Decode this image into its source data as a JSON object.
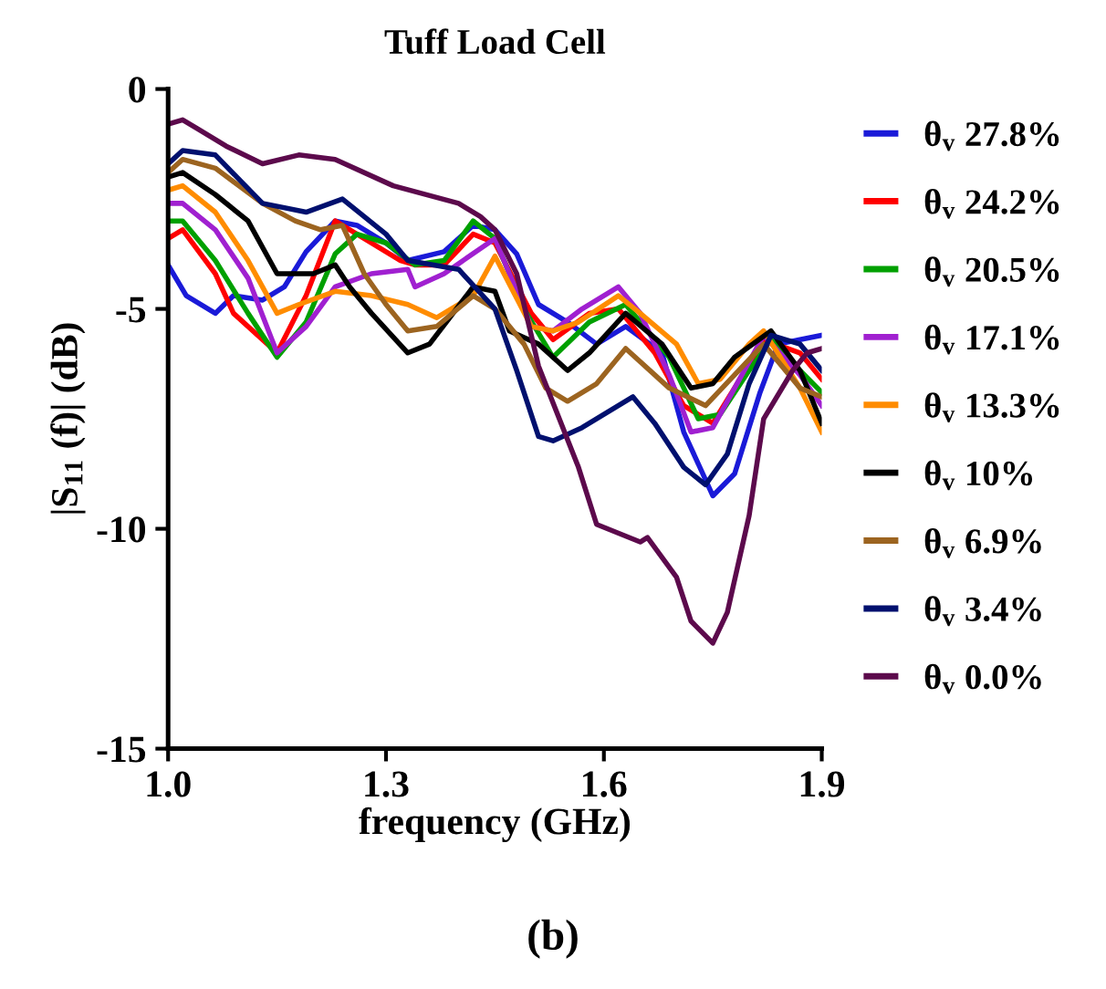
{
  "chart_data": {
    "type": "line",
    "title": "Tuff Load Cell",
    "xlabel": "frequency (GHz)",
    "ylabel": "|S$_{11}$ (f)| (dB)",
    "xlim": [
      1.0,
      1.9
    ],
    "xticks": [
      {
        "value": 1.0,
        "label": "1.0"
      },
      1.3,
      1.6,
      1.9
    ],
    "ylim": [
      -15,
      0
    ],
    "yticks": [
      {
        "value": -15,
        "label": "-15"
      },
      {
        "value": -10,
        "label": "-10"
      },
      {
        "value": -5,
        "label": "-5"
      },
      0
    ],
    "grid": false,
    "legend": "right",
    "marker": "none",
    "line_style": "solid",
    "annotations": [
      "(b)"
    ],
    "series": [
      {
        "name": "θ$_{v}$ 27.8%",
        "color": "#1a1ad8",
        "x": [
          1.0,
          1.025,
          1.065,
          1.09,
          1.13,
          1.16,
          1.19,
          1.23,
          1.26,
          1.3,
          1.33,
          1.38,
          1.42,
          1.45,
          1.48,
          1.51,
          1.55,
          1.59,
          1.63,
          1.68,
          1.71,
          1.75,
          1.78,
          1.815,
          1.84,
          1.87,
          1.9
        ],
        "values": [
          -4.0,
          -4.7,
          -5.1,
          -4.7,
          -4.8,
          -4.5,
          -3.7,
          -3.0,
          -3.1,
          -3.5,
          -3.9,
          -3.7,
          -3.1,
          -3.2,
          -3.75,
          -4.9,
          -5.3,
          -5.8,
          -5.4,
          -6.0,
          -7.8,
          -9.25,
          -8.75,
          -6.9,
          -5.8,
          -5.7,
          -5.6
        ]
      },
      {
        "name": "θ$_{v}$ 24.2%",
        "color": "#ff0000",
        "x": [
          1.0,
          1.02,
          1.065,
          1.09,
          1.15,
          1.19,
          1.23,
          1.26,
          1.32,
          1.34,
          1.38,
          1.42,
          1.45,
          1.5,
          1.53,
          1.58,
          1.62,
          1.67,
          1.71,
          1.75,
          1.78,
          1.82,
          1.87,
          1.9
        ],
        "values": [
          -3.4,
          -3.2,
          -4.2,
          -5.1,
          -6.0,
          -4.7,
          -3.0,
          -3.3,
          -3.9,
          -4.0,
          -4.0,
          -3.3,
          -3.5,
          -5.1,
          -5.7,
          -5.1,
          -5.0,
          -6.0,
          -7.2,
          -7.6,
          -6.8,
          -5.7,
          -6.0,
          -6.6
        ]
      },
      {
        "name": "θ$_{v}$ 20.5%",
        "color": "#00a000",
        "x": [
          1.0,
          1.02,
          1.065,
          1.11,
          1.15,
          1.19,
          1.23,
          1.26,
          1.3,
          1.34,
          1.38,
          1.42,
          1.45,
          1.49,
          1.53,
          1.58,
          1.63,
          1.69,
          1.73,
          1.76,
          1.8,
          1.83,
          1.87,
          1.9
        ],
        "values": [
          -3.0,
          -3.0,
          -3.9,
          -5.1,
          -6.1,
          -5.3,
          -3.75,
          -3.3,
          -3.5,
          -4.0,
          -3.9,
          -3.0,
          -3.4,
          -5.0,
          -6.1,
          -5.3,
          -4.9,
          -6.1,
          -7.5,
          -7.4,
          -6.4,
          -5.7,
          -6.4,
          -6.9
        ]
      },
      {
        "name": "θ$_{v}$ 17.1%",
        "color": "#a020d0",
        "x": [
          1.0,
          1.02,
          1.065,
          1.11,
          1.15,
          1.19,
          1.23,
          1.28,
          1.33,
          1.34,
          1.38,
          1.45,
          1.5,
          1.53,
          1.57,
          1.62,
          1.65,
          1.69,
          1.72,
          1.75,
          1.78,
          1.82,
          1.87,
          1.9
        ],
        "values": [
          -2.6,
          -2.6,
          -3.2,
          -4.3,
          -6.0,
          -5.4,
          -4.5,
          -4.2,
          -4.1,
          -4.5,
          -4.2,
          -3.4,
          -5.4,
          -5.5,
          -5.0,
          -4.5,
          -5.1,
          -6.5,
          -7.8,
          -7.7,
          -6.8,
          -5.6,
          -6.5,
          -7.2
        ]
      },
      {
        "name": "θ$_{v}$ 13.3%",
        "color": "#ff8c00",
        "x": [
          1.0,
          1.02,
          1.065,
          1.11,
          1.15,
          1.18,
          1.23,
          1.28,
          1.33,
          1.37,
          1.42,
          1.45,
          1.5,
          1.53,
          1.565,
          1.62,
          1.65,
          1.7,
          1.73,
          1.76,
          1.8,
          1.82,
          1.87,
          1.9
        ],
        "values": [
          -2.3,
          -2.2,
          -2.8,
          -3.9,
          -5.1,
          -4.9,
          -4.6,
          -4.7,
          -4.9,
          -5.2,
          -4.7,
          -3.8,
          -5.4,
          -5.5,
          -5.3,
          -4.7,
          -5.1,
          -5.8,
          -6.7,
          -6.6,
          -5.8,
          -5.5,
          -6.8,
          -7.8
        ]
      },
      {
        "name": "θ$_{v}$ 10%",
        "color": "#000000",
        "x": [
          1.0,
          1.02,
          1.065,
          1.11,
          1.15,
          1.2,
          1.23,
          1.25,
          1.28,
          1.33,
          1.36,
          1.42,
          1.45,
          1.47,
          1.51,
          1.55,
          1.58,
          1.63,
          1.68,
          1.72,
          1.75,
          1.78,
          1.83,
          1.87,
          1.9
        ],
        "values": [
          -2.0,
          -1.9,
          -2.4,
          -3.0,
          -4.2,
          -4.2,
          -4.0,
          -4.5,
          -5.1,
          -6.0,
          -5.8,
          -4.5,
          -4.6,
          -5.5,
          -5.8,
          -6.4,
          -6.0,
          -5.1,
          -5.8,
          -6.8,
          -6.7,
          -6.1,
          -5.5,
          -6.4,
          -7.6
        ]
      },
      {
        "name": "θ$_{v}$ 6.9%",
        "color": "#9c6420",
        "x": [
          1.0,
          1.02,
          1.065,
          1.13,
          1.175,
          1.21,
          1.24,
          1.27,
          1.3,
          1.33,
          1.37,
          1.42,
          1.45,
          1.49,
          1.52,
          1.55,
          1.59,
          1.63,
          1.67,
          1.69,
          1.74,
          1.78,
          1.82,
          1.87,
          1.9
        ],
        "values": [
          -1.9,
          -1.6,
          -1.8,
          -2.6,
          -3.0,
          -3.2,
          -3.1,
          -4.2,
          -4.9,
          -5.5,
          -5.4,
          -4.7,
          -5.0,
          -5.8,
          -6.8,
          -7.1,
          -6.7,
          -5.9,
          -6.5,
          -6.8,
          -7.2,
          -6.5,
          -5.8,
          -6.8,
          -7.0
        ]
      },
      {
        "name": "θ$_{v}$ 3.4%",
        "color": "#00106e",
        "x": [
          1.0,
          1.02,
          1.065,
          1.13,
          1.19,
          1.24,
          1.3,
          1.33,
          1.4,
          1.45,
          1.48,
          1.51,
          1.53,
          1.57,
          1.64,
          1.67,
          1.71,
          1.74,
          1.77,
          1.8,
          1.83,
          1.87,
          1.9
        ],
        "values": [
          -1.7,
          -1.4,
          -1.5,
          -2.6,
          -2.8,
          -2.5,
          -3.3,
          -3.9,
          -4.1,
          -5.0,
          -6.4,
          -7.9,
          -8.0,
          -7.7,
          -7.0,
          -7.6,
          -8.6,
          -9.0,
          -8.3,
          -6.7,
          -5.6,
          -5.8,
          -6.4
        ]
      },
      {
        "name": "θ$_{v}$ 0.0%",
        "color": "#5c0a4c",
        "x": [
          1.0,
          1.02,
          1.04,
          1.08,
          1.13,
          1.18,
          1.23,
          1.31,
          1.4,
          1.43,
          1.45,
          1.48,
          1.51,
          1.565,
          1.59,
          1.65,
          1.66,
          1.7,
          1.72,
          1.75,
          1.77,
          1.8,
          1.82,
          1.86,
          1.88,
          1.9
        ],
        "values": [
          -0.8,
          -0.7,
          -0.9,
          -1.3,
          -1.7,
          -1.5,
          -1.6,
          -2.2,
          -2.6,
          -2.9,
          -3.2,
          -4.2,
          -6.3,
          -8.6,
          -9.9,
          -10.3,
          -10.2,
          -11.1,
          -12.1,
          -12.6,
          -11.9,
          -9.7,
          -7.5,
          -6.4,
          -6.0,
          -5.9
        ]
      }
    ]
  }
}
